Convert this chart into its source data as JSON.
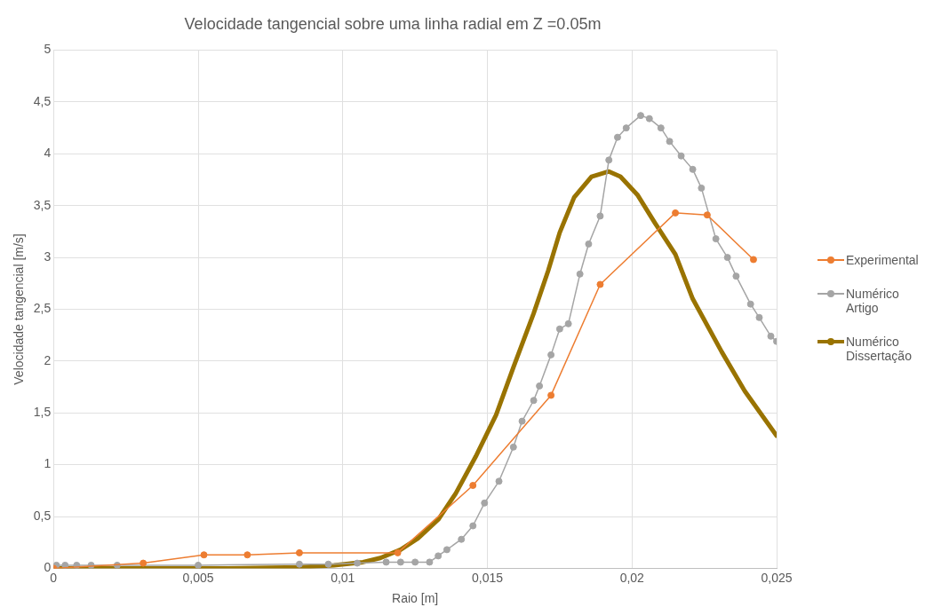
{
  "chart_data": {
    "type": "line",
    "title": "Velocidade tangencial sobre uma linha radial em Z =0.05m",
    "xlabel": "Raio [m]",
    "ylabel": "Velocidade tangencial [m/s]",
    "xlim": [
      0,
      0.025
    ],
    "xticks": [
      0,
      {
        "value": 0.005,
        "label": "0,005"
      },
      {
        "value": 0.01,
        "label": "0,01"
      },
      {
        "value": 0.015,
        "label": "0,015"
      },
      {
        "value": 0.02,
        "label": "0,02"
      },
      {
        "value": 0.025,
        "label": "0,025"
      }
    ],
    "ylim": [
      0,
      5
    ],
    "yticks": [
      0,
      {
        "value": 0.5,
        "label": "0,5"
      },
      1,
      {
        "value": 1.5,
        "label": "1,5"
      },
      2,
      {
        "value": 2.5,
        "label": "2,5"
      },
      3,
      {
        "value": 3.5,
        "label": "3,5"
      },
      4,
      {
        "value": 4.5,
        "label": "4,5"
      },
      5
    ],
    "grid": true,
    "legend": "right",
    "series": [
      {
        "name": "Experimental",
        "color": "#ed7d31",
        "marker": "circle",
        "x": [
          0,
          0.0031,
          0.0052,
          0.0067,
          0.0085,
          0.0119,
          0.0145,
          0.0172,
          0.0189,
          0.0215,
          0.0226,
          0.0242
        ],
        "values": [
          0,
          0.05,
          0.13,
          0.13,
          0.15,
          0.15,
          0.8,
          1.67,
          2.74,
          3.43,
          3.41,
          2.98
        ]
      },
      {
        "name": "Numérico Artigo",
        "color": "#a5a5a5",
        "marker": "circle",
        "x": [
          0.0001,
          0.0004,
          0.0008,
          0.0013,
          0.0022,
          0.005,
          0.0085,
          0.0095,
          0.0105,
          0.0115,
          0.012,
          0.0125,
          0.013,
          0.0133,
          0.0136,
          0.0141,
          0.0145,
          0.0149,
          0.0154,
          0.0159,
          0.0162,
          0.0166,
          0.0168,
          0.0172,
          0.0175,
          0.0178,
          0.0182,
          0.0185,
          0.0189,
          0.0192,
          0.0195,
          0.0198,
          0.0203,
          0.0206,
          0.021,
          0.0213,
          0.0217,
          0.0221,
          0.0224,
          0.0229,
          0.0233,
          0.0236,
          0.0241,
          0.0244,
          0.0248,
          0.025
        ],
        "values": [
          0.03,
          0.03,
          0.03,
          0.03,
          0.03,
          0.03,
          0.04,
          0.04,
          0.05,
          0.06,
          0.06,
          0.06,
          0.06,
          0.12,
          0.18,
          0.28,
          0.41,
          0.63,
          0.84,
          1.17,
          1.42,
          1.62,
          1.76,
          2.06,
          2.31,
          2.36,
          2.84,
          3.13,
          3.4,
          3.94,
          4.16,
          4.25,
          4.37,
          4.34,
          4.25,
          4.12,
          3.98,
          3.85,
          3.67,
          3.18,
          3.0,
          2.82,
          2.55,
          2.42,
          2.24,
          2.19
        ]
      },
      {
        "name": "Numérico Dissertação",
        "color": "#997300",
        "marker": "none",
        "x": [
          0,
          0.003,
          0.006,
          0.0085,
          0.0097,
          0.0107,
          0.0113,
          0.012,
          0.0126,
          0.0133,
          0.0139,
          0.0146,
          0.0153,
          0.0159,
          0.0166,
          0.0171,
          0.0175,
          0.018,
          0.0186,
          0.0192,
          0.0196,
          0.0202,
          0.0208,
          0.0215,
          0.0221,
          0.0231,
          0.0239,
          0.025
        ],
        "values": [
          0,
          0,
          0,
          0.01,
          0.03,
          0.06,
          0.1,
          0.18,
          0.29,
          0.47,
          0.72,
          1.08,
          1.48,
          1.94,
          2.46,
          2.87,
          3.24,
          3.58,
          3.78,
          3.83,
          3.78,
          3.6,
          3.33,
          3.03,
          2.6,
          2.09,
          1.71,
          1.28
        ]
      }
    ]
  }
}
